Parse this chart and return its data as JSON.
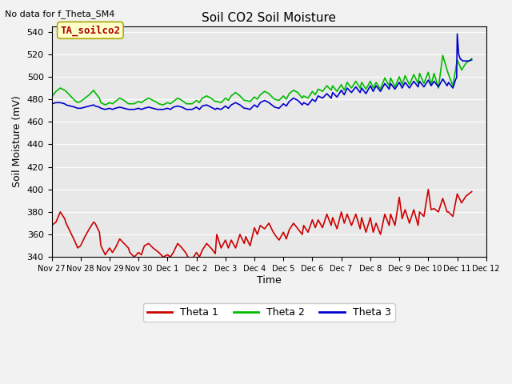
{
  "title": "Soil CO2 Soil Moisture",
  "subtitle": "No data for f_Theta_SM4",
  "ylabel": "Soil Moisture (mV)",
  "xlabel": "Time",
  "annotation": "TA_soilco2",
  "ylim": [
    340,
    545
  ],
  "yticks": [
    340,
    360,
    380,
    400,
    420,
    440,
    460,
    480,
    500,
    520,
    540
  ],
  "x_labels": [
    "Nov 27",
    "Nov 28",
    "Nov 29",
    "Nov 30",
    "Dec 1",
    "Dec 2",
    "Dec 3",
    "Dec 4",
    "Dec 5",
    "Dec 6",
    "Dec 7",
    "Dec 8",
    "Dec 9",
    "Dec 10",
    "Dec 11",
    "Dec 12"
  ],
  "legend": [
    {
      "label": "Theta 1",
      "color": "#cc0000"
    },
    {
      "label": "Theta 2",
      "color": "#00bb00"
    },
    {
      "label": "Theta 3",
      "color": "#0000cc"
    }
  ],
  "bg_color": "#e8e8e8",
  "fig_bg_color": "#f2f2f2",
  "grid_color": "#ffffff",
  "theta1_x": [
    0,
    0.15,
    0.3,
    0.45,
    0.5,
    0.65,
    0.8,
    0.9,
    1.0,
    1.15,
    1.3,
    1.45,
    1.5,
    1.65,
    1.7,
    1.85,
    2.0,
    2.1,
    2.2,
    2.35,
    2.5,
    2.65,
    2.7,
    2.85,
    3.0,
    3.1,
    3.2,
    3.35,
    3.5,
    3.65,
    3.7,
    3.85,
    4.0,
    4.1,
    4.2,
    4.35,
    4.5,
    4.65,
    4.7,
    4.85,
    5.0,
    5.1,
    5.2,
    5.35,
    5.5,
    5.65,
    5.7,
    5.85,
    6.0,
    6.1,
    6.2,
    6.35,
    6.5,
    6.65,
    6.7,
    6.85,
    7.0,
    7.1,
    7.2,
    7.35,
    7.5,
    7.65,
    7.7,
    7.85,
    8.0,
    8.1,
    8.2,
    8.35,
    8.5,
    8.65,
    8.7,
    8.85,
    9.0,
    9.1,
    9.2,
    9.35,
    9.5,
    9.65,
    9.7,
    9.85,
    10.0,
    10.1,
    10.2,
    10.35,
    10.5,
    10.65,
    10.7,
    10.85,
    11.0,
    11.1,
    11.2,
    11.35,
    11.5,
    11.65,
    11.7,
    11.85,
    12.0,
    12.1,
    12.2,
    12.35,
    12.5,
    12.65,
    12.7,
    12.85,
    13.0,
    13.1,
    13.2,
    13.35,
    13.5,
    13.65,
    13.7,
    13.85,
    14.0,
    14.15,
    14.3,
    14.5
  ],
  "theta1_y": [
    368,
    371,
    380,
    374,
    370,
    362,
    354,
    348,
    350,
    358,
    365,
    371,
    370,
    362,
    350,
    342,
    348,
    344,
    348,
    356,
    352,
    348,
    344,
    340,
    344,
    342,
    350,
    352,
    348,
    345,
    344,
    340,
    342,
    340,
    344,
    352,
    348,
    343,
    340,
    338,
    344,
    340,
    346,
    352,
    348,
    343,
    360,
    348,
    355,
    348,
    355,
    348,
    360,
    352,
    358,
    350,
    366,
    360,
    368,
    365,
    370,
    362,
    360,
    355,
    362,
    356,
    364,
    370,
    365,
    360,
    368,
    362,
    373,
    366,
    373,
    366,
    378,
    368,
    375,
    365,
    380,
    370,
    378,
    368,
    378,
    365,
    375,
    362,
    375,
    362,
    370,
    360,
    378,
    368,
    378,
    368,
    393,
    374,
    382,
    370,
    382,
    368,
    380,
    376,
    400,
    382,
    383,
    380,
    392,
    380,
    380,
    376,
    396,
    388,
    394,
    398
  ],
  "theta2_x": [
    0,
    0.15,
    0.3,
    0.45,
    0.5,
    0.65,
    0.8,
    0.9,
    1.0,
    1.15,
    1.3,
    1.45,
    1.5,
    1.65,
    1.7,
    1.85,
    2.0,
    2.1,
    2.2,
    2.35,
    2.5,
    2.65,
    2.7,
    2.85,
    3.0,
    3.1,
    3.2,
    3.35,
    3.5,
    3.65,
    3.7,
    3.85,
    4.0,
    4.1,
    4.2,
    4.35,
    4.5,
    4.65,
    4.7,
    4.85,
    5.0,
    5.1,
    5.2,
    5.35,
    5.5,
    5.65,
    5.7,
    5.85,
    6.0,
    6.1,
    6.2,
    6.35,
    6.5,
    6.65,
    6.7,
    6.85,
    7.0,
    7.1,
    7.2,
    7.35,
    7.5,
    7.65,
    7.7,
    7.85,
    8.0,
    8.1,
    8.2,
    8.35,
    8.5,
    8.65,
    8.7,
    8.85,
    9.0,
    9.1,
    9.2,
    9.35,
    9.5,
    9.65,
    9.7,
    9.85,
    10.0,
    10.1,
    10.2,
    10.35,
    10.5,
    10.65,
    10.7,
    10.85,
    11.0,
    11.1,
    11.2,
    11.35,
    11.5,
    11.65,
    11.7,
    11.85,
    12.0,
    12.1,
    12.2,
    12.35,
    12.5,
    12.65,
    12.7,
    12.85,
    13.0,
    13.1,
    13.2,
    13.35,
    13.5,
    13.65,
    13.7,
    13.85,
    14.0,
    14.15,
    14.3,
    14.5
  ],
  "theta2_y": [
    482,
    487,
    490,
    488,
    487,
    483,
    479,
    477,
    478,
    481,
    484,
    488,
    486,
    481,
    477,
    475,
    477,
    476,
    478,
    481,
    479,
    476,
    476,
    476,
    478,
    477,
    479,
    481,
    479,
    477,
    476,
    475,
    477,
    476,
    478,
    481,
    479,
    476,
    476,
    476,
    479,
    477,
    481,
    483,
    481,
    478,
    478,
    477,
    481,
    479,
    483,
    486,
    483,
    479,
    479,
    478,
    482,
    480,
    484,
    487,
    485,
    481,
    480,
    479,
    483,
    480,
    485,
    488,
    486,
    481,
    483,
    481,
    487,
    484,
    489,
    487,
    492,
    488,
    492,
    487,
    493,
    488,
    495,
    490,
    496,
    490,
    495,
    489,
    496,
    490,
    495,
    489,
    499,
    492,
    499,
    491,
    500,
    493,
    501,
    493,
    502,
    494,
    503,
    494,
    504,
    493,
    503,
    490,
    519,
    506,
    502,
    492,
    515,
    506,
    512,
    516
  ],
  "theta3_x": [
    0,
    0.15,
    0.3,
    0.45,
    0.5,
    0.65,
    0.8,
    0.9,
    1.0,
    1.15,
    1.3,
    1.45,
    1.5,
    1.65,
    1.7,
    1.85,
    2.0,
    2.1,
    2.2,
    2.35,
    2.5,
    2.65,
    2.7,
    2.85,
    3.0,
    3.1,
    3.2,
    3.35,
    3.5,
    3.65,
    3.7,
    3.85,
    4.0,
    4.1,
    4.2,
    4.35,
    4.5,
    4.65,
    4.7,
    4.85,
    5.0,
    5.1,
    5.2,
    5.35,
    5.5,
    5.65,
    5.7,
    5.85,
    6.0,
    6.1,
    6.2,
    6.35,
    6.5,
    6.65,
    6.7,
    6.85,
    7.0,
    7.1,
    7.2,
    7.35,
    7.5,
    7.65,
    7.7,
    7.85,
    8.0,
    8.1,
    8.2,
    8.35,
    8.5,
    8.65,
    8.7,
    8.85,
    9.0,
    9.1,
    9.2,
    9.35,
    9.5,
    9.65,
    9.7,
    9.85,
    10.0,
    10.1,
    10.2,
    10.35,
    10.5,
    10.65,
    10.7,
    10.85,
    11.0,
    11.1,
    11.2,
    11.35,
    11.5,
    11.65,
    11.7,
    11.85,
    12.0,
    12.1,
    12.2,
    12.35,
    12.5,
    12.65,
    12.7,
    12.85,
    13.0,
    13.1,
    13.2,
    13.35,
    13.5,
    13.65,
    13.7,
    13.85,
    13.95,
    13.98,
    14.0,
    14.05,
    14.1,
    14.2,
    14.3,
    14.4,
    14.5
  ],
  "theta3_y": [
    476,
    477,
    477,
    476,
    475,
    474,
    473,
    472,
    472,
    473,
    474,
    475,
    474,
    473,
    472,
    471,
    472,
    471,
    472,
    473,
    472,
    471,
    471,
    471,
    472,
    471,
    472,
    473,
    472,
    471,
    471,
    471,
    472,
    471,
    473,
    474,
    473,
    471,
    471,
    471,
    473,
    471,
    474,
    475,
    473,
    471,
    472,
    471,
    474,
    472,
    475,
    477,
    475,
    472,
    472,
    471,
    475,
    473,
    477,
    479,
    477,
    474,
    473,
    472,
    476,
    474,
    478,
    481,
    479,
    475,
    477,
    475,
    480,
    478,
    483,
    481,
    485,
    481,
    486,
    482,
    488,
    484,
    490,
    486,
    491,
    486,
    490,
    485,
    492,
    487,
    492,
    487,
    494,
    489,
    494,
    489,
    495,
    490,
    495,
    490,
    496,
    491,
    496,
    491,
    497,
    492,
    496,
    491,
    498,
    492,
    495,
    490,
    498,
    499,
    538,
    520,
    516,
    514,
    514,
    514,
    515
  ]
}
